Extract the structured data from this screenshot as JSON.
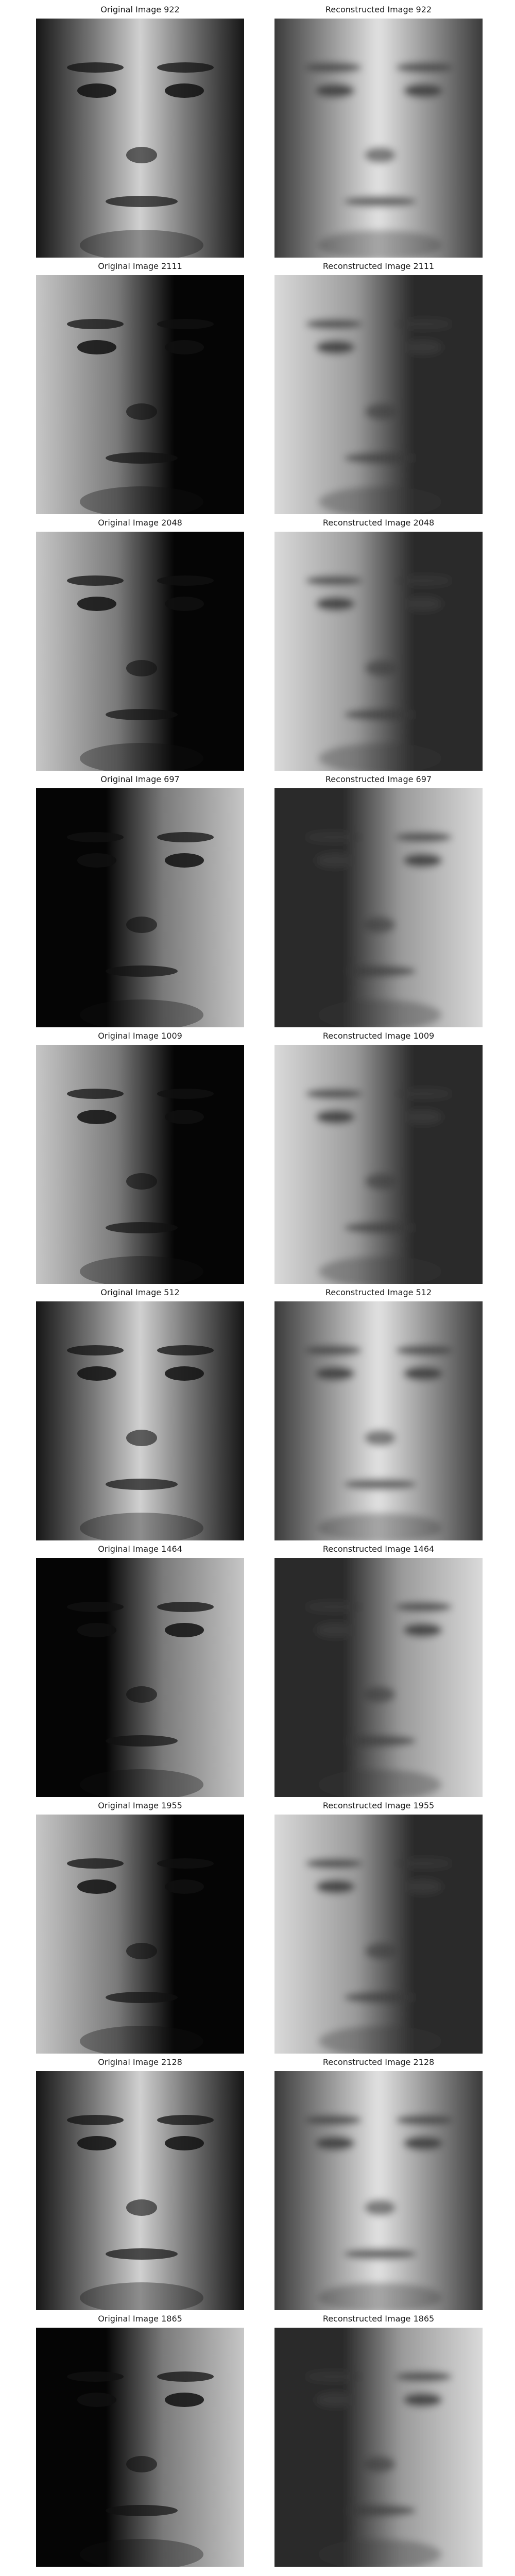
{
  "panels": [
    {
      "original_title": "Original Image 922",
      "reconstructed_title": "Reconstructed Image 922",
      "light": "center"
    },
    {
      "original_title": "Original Image 2111",
      "reconstructed_title": "Reconstructed Image 2111",
      "light": "left"
    },
    {
      "original_title": "Original Image 2048",
      "reconstructed_title": "Reconstructed Image 2048",
      "light": "left"
    },
    {
      "original_title": "Original Image 697",
      "reconstructed_title": "Reconstructed Image 697",
      "light": "right"
    },
    {
      "original_title": "Original Image 1009",
      "reconstructed_title": "Reconstructed Image 1009",
      "light": "left"
    },
    {
      "original_title": "Original Image 512",
      "reconstructed_title": "Reconstructed Image 512",
      "light": "center"
    },
    {
      "original_title": "Original Image 1464",
      "reconstructed_title": "Reconstructed Image 1464",
      "light": "right"
    },
    {
      "original_title": "Original Image 1955",
      "reconstructed_title": "Reconstructed Image 1955",
      "light": "left"
    },
    {
      "original_title": "Original Image 2128",
      "reconstructed_title": "Reconstructed Image 2128",
      "light": "center"
    },
    {
      "original_title": "Original Image 1865",
      "reconstructed_title": "Reconstructed Image 1865",
      "light": "right"
    }
  ]
}
